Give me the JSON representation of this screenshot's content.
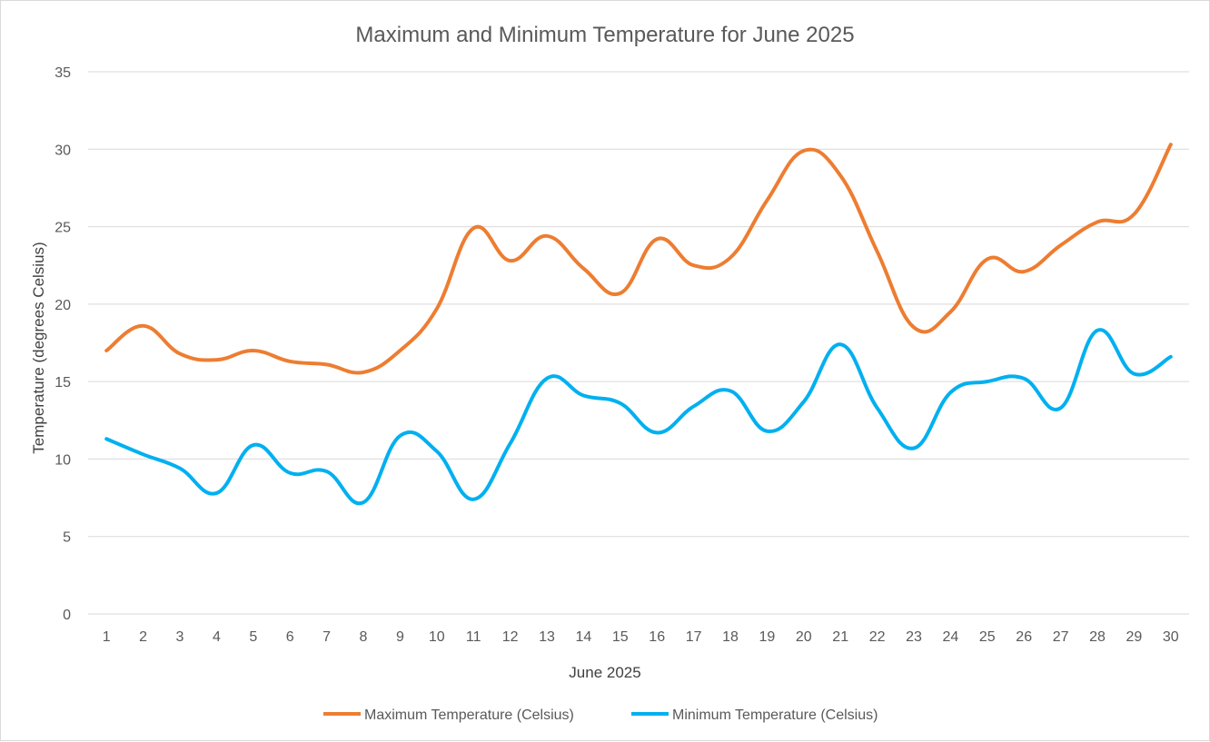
{
  "chart_data": {
    "type": "line",
    "title": "Maximum and Minimum Temperature for June 2025",
    "xlabel": "June 2025",
    "ylabel": "Temperature (degrees Celsius)",
    "ylim": [
      0,
      35
    ],
    "yticks": [
      0,
      5,
      10,
      15,
      20,
      25,
      30,
      35
    ],
    "grid": true,
    "legend_position": "bottom",
    "categories": [
      "1",
      "2",
      "3",
      "4",
      "5",
      "6",
      "7",
      "8",
      "9",
      "10",
      "11",
      "12",
      "13",
      "14",
      "15",
      "16",
      "17",
      "18",
      "19",
      "20",
      "21",
      "22",
      "23",
      "24",
      "25",
      "26",
      "27",
      "28",
      "29",
      "30"
    ],
    "series": [
      {
        "name": "Maximum Temperature (Celsius)",
        "color": "#ED7D31",
        "values": [
          17.0,
          18.6,
          16.8,
          16.4,
          17.0,
          16.3,
          16.1,
          15.6,
          17.0,
          19.7,
          24.9,
          22.8,
          24.4,
          22.3,
          20.7,
          24.2,
          22.5,
          23.0,
          26.7,
          29.9,
          28.3,
          23.4,
          18.5,
          19.5,
          22.9,
          22.1,
          23.8,
          25.3,
          25.8,
          30.3
        ]
      },
      {
        "name": "Minimum Temperature (Celsius)",
        "color": "#00B0F0",
        "values": [
          11.3,
          10.3,
          9.4,
          7.8,
          10.9,
          9.1,
          9.2,
          7.2,
          11.5,
          10.5,
          7.4,
          11.0,
          15.2,
          14.1,
          13.6,
          11.7,
          13.4,
          14.4,
          11.8,
          13.7,
          17.4,
          13.3,
          10.7,
          14.3,
          15.0,
          15.2,
          13.3,
          18.3,
          15.5,
          16.6
        ]
      }
    ]
  }
}
